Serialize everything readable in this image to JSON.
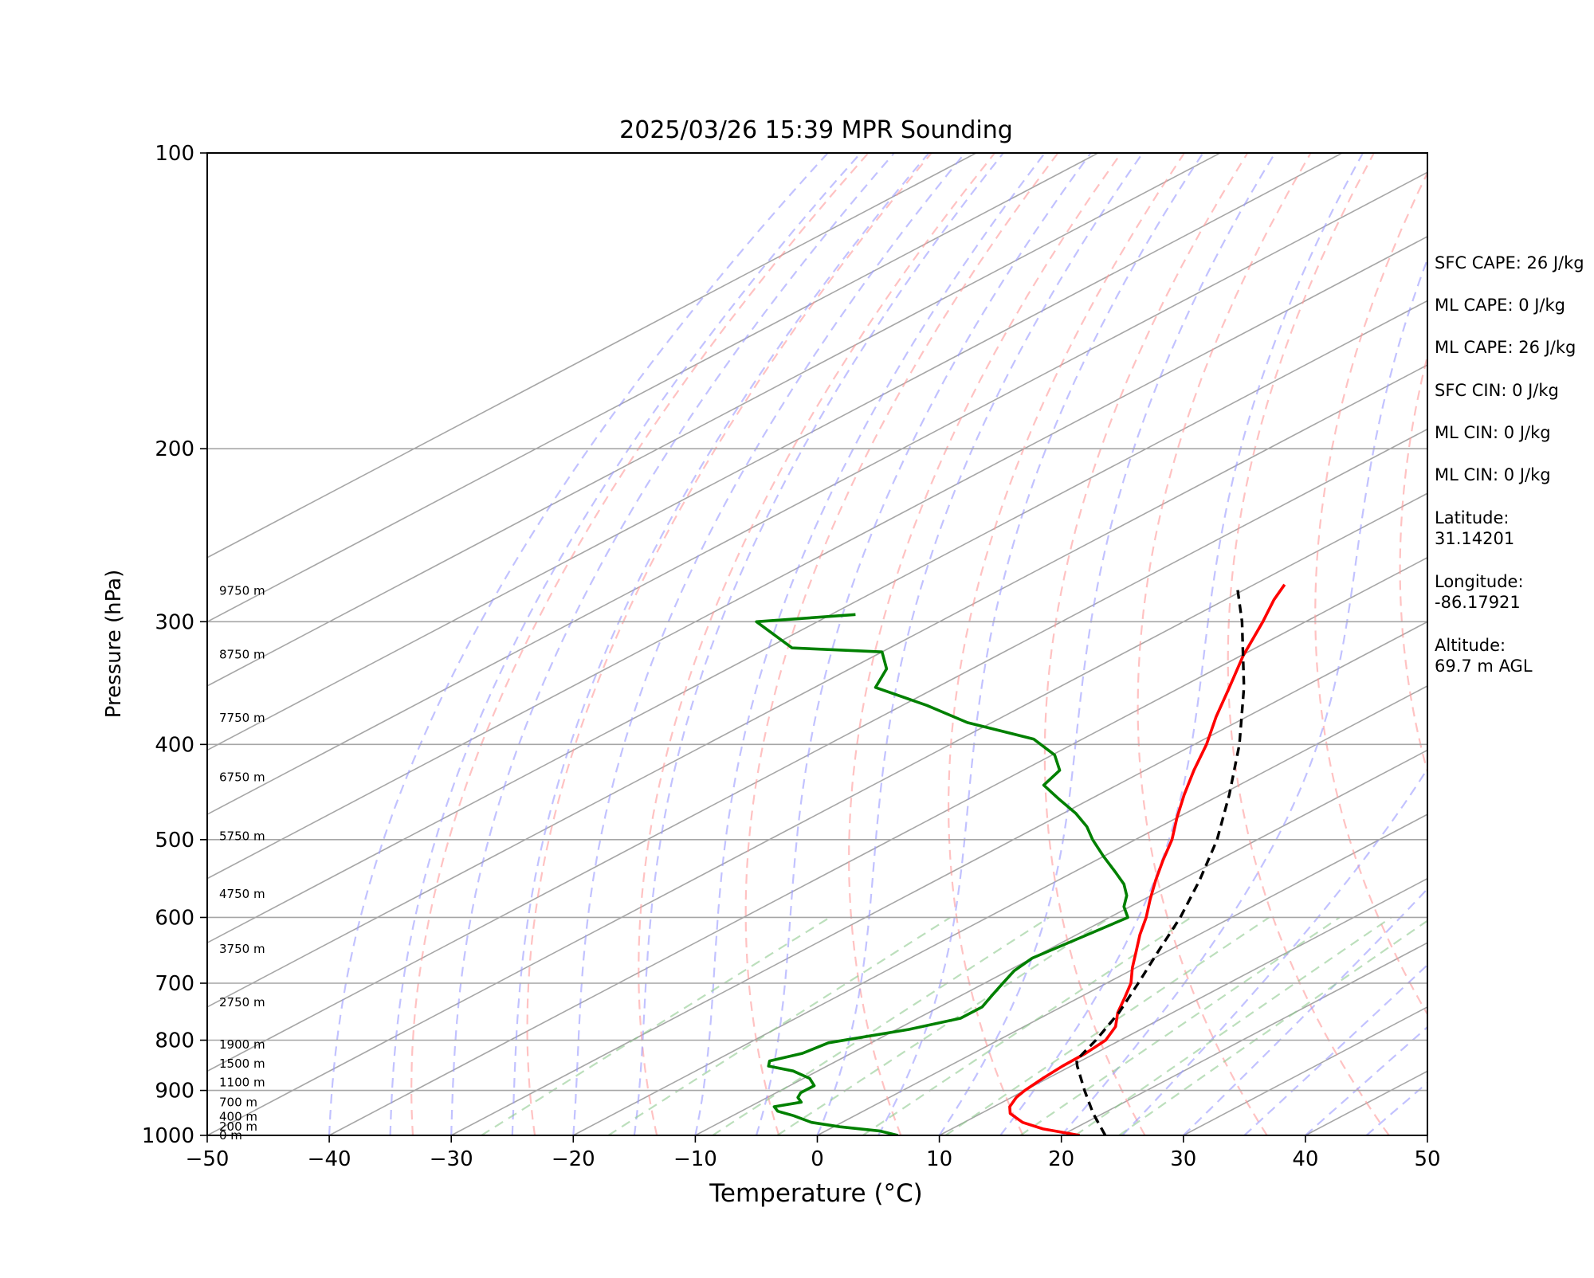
{
  "chart_data": {
    "type": "line",
    "title": "2025/03/26 15:39 MPR Sounding",
    "xlabel": "Temperature (°C)",
    "ylabel": "Pressure (hPa)",
    "xlim": [
      -50,
      50
    ],
    "ylim": [
      1000,
      100
    ],
    "y_scale": "log",
    "skew": true,
    "grid": true,
    "x_ticks": [
      "−50",
      "−40",
      "−30",
      "−20",
      "−10",
      "0",
      "10",
      "20",
      "30",
      "40",
      "50"
    ],
    "y_ticks": [
      "1000",
      "900",
      "800",
      "700",
      "600",
      "500",
      "400",
      "300",
      "200",
      "100"
    ],
    "height_labels": [
      {
        "label": "0 m",
        "p": 1000
      },
      {
        "label": "200 m",
        "p": 980
      },
      {
        "label": "400 m",
        "p": 957
      },
      {
        "label": "700 m",
        "p": 925
      },
      {
        "label": "1100 m",
        "p": 883
      },
      {
        "label": "1500 m",
        "p": 845
      },
      {
        "label": "1900 m",
        "p": 808
      },
      {
        "label": "2750 m",
        "p": 732
      },
      {
        "label": "3750 m",
        "p": 646
      },
      {
        "label": "4750 m",
        "p": 568
      },
      {
        "label": "5750 m",
        "p": 496
      },
      {
        "label": "6750 m",
        "p": 432
      },
      {
        "label": "7750 m",
        "p": 376
      },
      {
        "label": "8750 m",
        "p": 324
      },
      {
        "label": "9750 m",
        "p": 279
      }
    ],
    "series": [
      {
        "role": "temperature",
        "color": "#ff0000",
        "p": [
          1000,
          985,
          970,
          950,
          935,
          915,
          900,
          875,
          850,
          825,
          800,
          775,
          750,
          725,
          700,
          675,
          650,
          625,
          600,
          575,
          550,
          525,
          500,
          475,
          450,
          425,
          400,
          375,
          350,
          325,
          300,
          285,
          275
        ],
        "t": [
          21.5,
          17.5,
          14.8,
          12.4,
          11.3,
          10.4,
          10.0,
          9.6,
          9.3,
          9.2,
          8.8,
          7.5,
          5.5,
          3.8,
          2.0,
          -0.3,
          -2.5,
          -4.8,
          -7.0,
          -9.5,
          -12.0,
          -14.5,
          -17.0,
          -20.0,
          -23.0,
          -26.0,
          -29.0,
          -32.5,
          -36.0,
          -39.8,
          -43.5,
          -46.0,
          -47.5
        ]
      },
      {
        "role": "dewpoint",
        "color": "#008000",
        "p": [
          1000,
          990,
          980,
          970,
          955,
          945,
          935,
          925,
          915,
          905,
          890,
          875,
          860,
          850,
          840,
          825,
          805,
          780,
          760,
          740,
          720,
          700,
          680,
          660,
          640,
          620,
          600,
          585,
          570,
          555,
          540,
          520,
          500,
          485,
          470,
          455,
          440,
          425,
          410,
          395,
          380,
          365,
          350,
          335,
          322,
          319,
          300,
          295
        ],
        "t": [
          6.6,
          4.5,
          0.5,
          -2.5,
          -5.0,
          -7.0,
          -8.0,
          -6.5,
          -7.5,
          -8.0,
          -8.0,
          -9.5,
          -12.0,
          -14.8,
          -15.5,
          -14.0,
          -13.5,
          -9.0,
          -6.5,
          -6.5,
          -7.5,
          -8.5,
          -9.5,
          -10.0,
          -9.5,
          -9.0,
          -8.5,
          -10.5,
          -12.0,
          -14.0,
          -16.5,
          -20.0,
          -23.5,
          -26.0,
          -29.0,
          -32.5,
          -36.0,
          -37.0,
          -39.8,
          -44.0,
          -52.0,
          -58.0,
          -65.0,
          -67.0,
          -70.0,
          -78.0,
          -85.0,
          -78.0
        ]
      },
      {
        "role": "parcel",
        "color": "#000000",
        "dashed": true,
        "p": [
          1000,
          950,
          900,
          850,
          838,
          800,
          750,
          700,
          650,
          600,
          550,
          500,
          450,
          400,
          350,
          300,
          275
        ],
        "t": [
          23.6,
          19.2,
          14.9,
          10.5,
          9.5,
          8.0,
          5.6,
          2.6,
          -0.7,
          -4.2,
          -8.4,
          -13.3,
          -19.3,
          -26.3,
          -34.8,
          -45.2,
          -51.4
        ]
      }
    ]
  },
  "side_panel": {
    "sfc_cape": "SFC CAPE: 26 J/kg",
    "ml_cape_1": "ML CAPE: 0 J/kg",
    "ml_cape_2": "ML CAPE: 26 J/kg",
    "sfc_cin": "SFC CIN: 0 J/kg",
    "ml_cin_1": "ML CIN: 0 J/kg",
    "ml_cin_2": "ML CIN: 0 J/kg",
    "latitude": "Latitude:\n31.14201",
    "longitude": "Longitude:\n-86.17921",
    "altitude": "Altitude:\n69.7 m AGL"
  }
}
